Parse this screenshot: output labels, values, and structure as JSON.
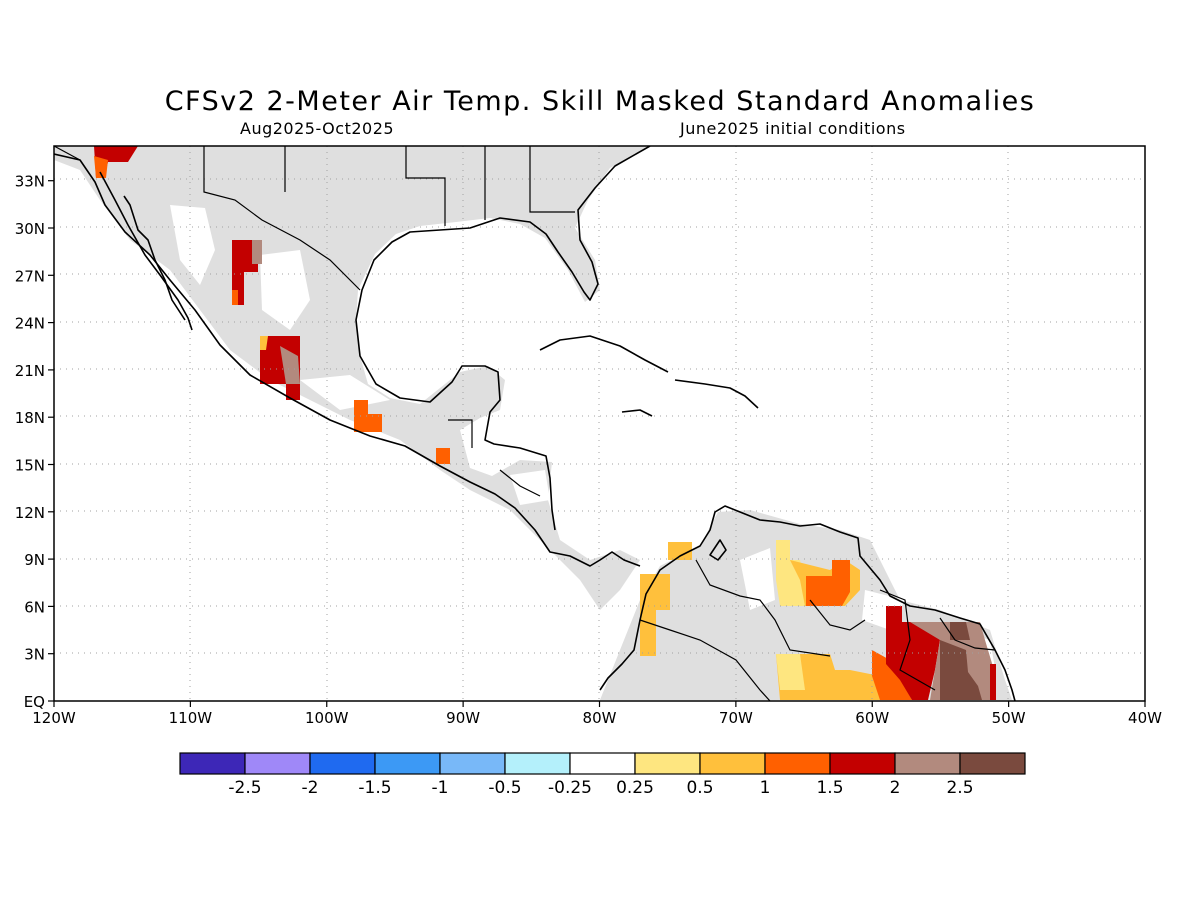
{
  "title": "CFSv2 2-Meter Air Temp. Skill Masked Standard Anomalies",
  "subtitle_left": "Aug2025-Oct2025",
  "subtitle_right": "June2025 initial conditions",
  "lon_ticks": [
    "120W",
    "110W",
    "100W",
    "90W",
    "80W",
    "70W",
    "60W",
    "50W",
    "40W"
  ],
  "lat_ticks": [
    "EQ",
    "3N",
    "6N",
    "9N",
    "12N",
    "15N",
    "18N",
    "21N",
    "24N",
    "27N",
    "30N",
    "33N"
  ],
  "colorbar": {
    "colors": [
      "#3d27b7",
      "#9f88f8",
      "#1f6af0",
      "#3c99f5",
      "#78b8f8",
      "#b4f0fb",
      "#ffffff",
      "#fee680",
      "#ffc03c",
      "#ff6000",
      "#c30000",
      "#b28a7e",
      "#7a4a3e"
    ],
    "labels": [
      "-2.5",
      "-2",
      "-1.5",
      "-1",
      "-0.5",
      "-0.25",
      "0.25",
      "0.5",
      "1",
      "1.5",
      "2",
      "2.5"
    ]
  },
  "colors": {
    "masked_land": "#dfdfdf",
    "coast": "#000000",
    "grid": "#a0a0a0"
  }
}
